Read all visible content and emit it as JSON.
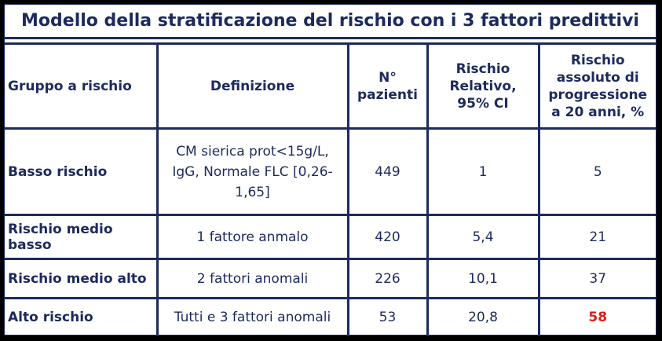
{
  "title": "Modello della stratificazione del rischio con i 3 fattori predittivi",
  "headers": {
    "group": "Gruppo a rischio",
    "definition": "Definizione",
    "patients": "N° pazienti",
    "relative_risk": "Rischio Relativo, 95% CI",
    "absolute_risk": "Rischio assoluto di progressione a 20 anni, %"
  },
  "rows": [
    {
      "group": "Basso rischio",
      "definition": "CM  sierica prot<15g/L, IgG, Normale FLC [0,26-1,65]",
      "patients": "449",
      "relative_risk": "1",
      "absolute_risk": "5"
    },
    {
      "group": "Rischio medio basso",
      "definition": "1 fattore anmalo",
      "patients": "420",
      "relative_risk": "5,4",
      "absolute_risk": "21"
    },
    {
      "group": "Rischio medio alto",
      "definition": "2 fattori anomali",
      "patients": "226",
      "relative_risk": "10,1",
      "absolute_risk": "37"
    },
    {
      "group": "Alto rischio",
      "definition": "Tutti e 3 fattori anomali",
      "patients": "53",
      "relative_risk": "20,8",
      "absolute_risk": "58"
    }
  ],
  "colors": {
    "text": "#1c2a5e",
    "highlight": "#e01b1b",
    "border": "#1c2a5e"
  }
}
